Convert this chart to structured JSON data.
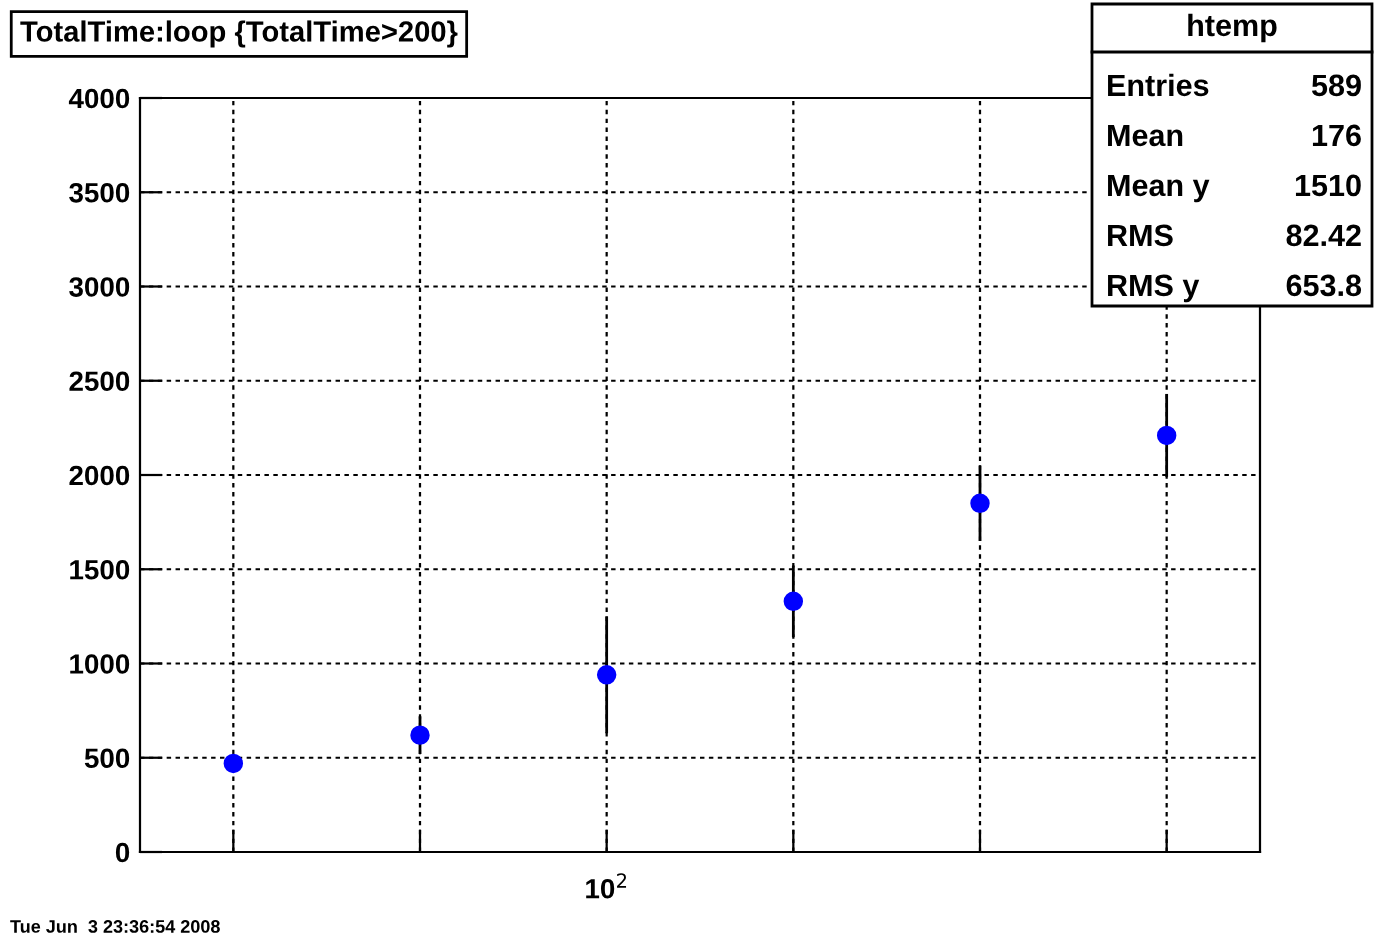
{
  "chart_data": {
    "type": "scatter",
    "title": "TotalTime:loop {TotalTime>200}",
    "categories": [
      null,
      null,
      null,
      null,
      null,
      null
    ],
    "series": [
      {
        "color": "#0000ff",
        "values": [
          470,
          620,
          940,
          1330,
          1850,
          2210
        ],
        "errors": [
          null,
          100,
          310,
          190,
          200,
          220
        ]
      }
    ],
    "ylim": [
      0,
      4000
    ],
    "yticks": [
      0,
      500,
      1000,
      1500,
      2000,
      2500,
      3000,
      3500,
      4000
    ],
    "grid": true,
    "marker": "circle",
    "annotations": [
      "10$^{2}$",
      "Tue Jun  3 23:36:54 2008",
      "htemp",
      "Entries",
      "589",
      "Mean",
      "176",
      "Mean y",
      "1510",
      "RMS",
      "82.42",
      "RMS y",
      "653.8"
    ]
  }
}
